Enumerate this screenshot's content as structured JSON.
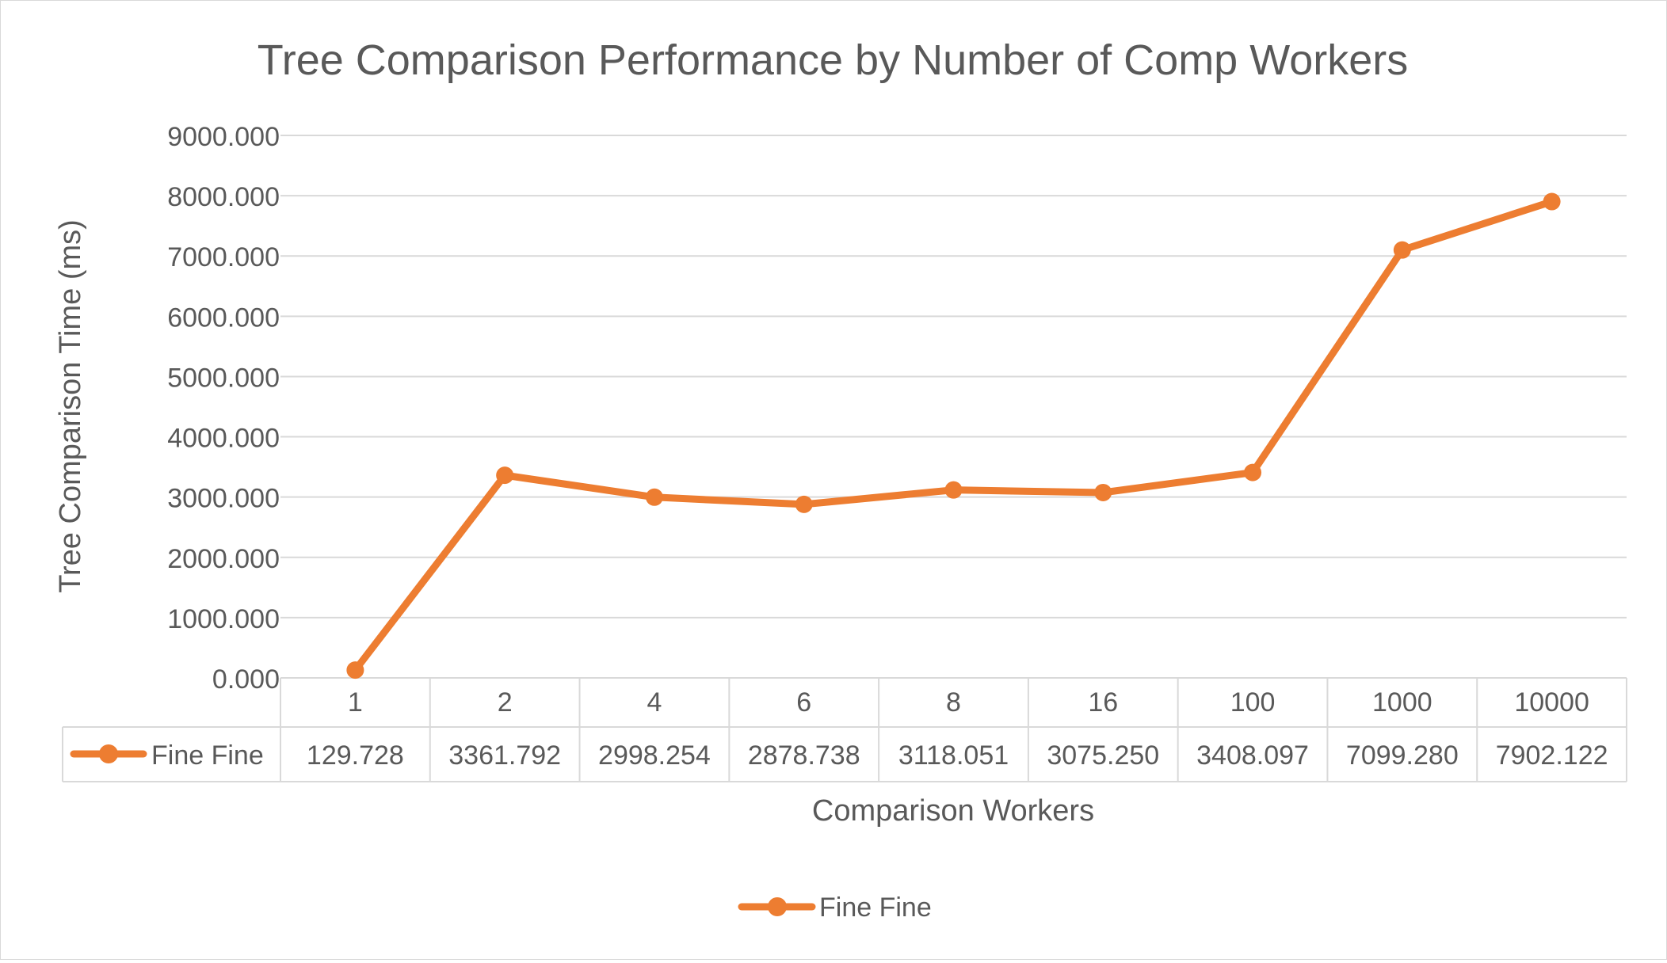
{
  "chart_data": {
    "type": "line",
    "title": "Tree Comparison Performance by Number of Comp Workers",
    "xlabel": "Comparison Workers",
    "ylabel": "Tree Comparison Time (ms)",
    "ylim": [
      0,
      9000
    ],
    "yticks": [
      "0.000",
      "1000.000",
      "2000.000",
      "3000.000",
      "4000.000",
      "5000.000",
      "6000.000",
      "7000.000",
      "8000.000",
      "9000.000"
    ],
    "categories": [
      "1",
      "2",
      "4",
      "6",
      "8",
      "16",
      "100",
      "1000",
      "10000"
    ],
    "series": [
      {
        "name": "Fine Fine",
        "values": [
          129.728,
          3361.792,
          2998.254,
          2878.738,
          3118.051,
          3075.25,
          3408.097,
          7099.28,
          7902.122
        ],
        "value_labels": [
          "129.728",
          "3361.792",
          "2998.254",
          "2878.738",
          "3118.051",
          "3075.250",
          "3408.097",
          "7099.280",
          "7902.122"
        ],
        "color": "#ED7D31"
      }
    ],
    "grid": true,
    "data_table": true,
    "legend_position": "bottom"
  }
}
